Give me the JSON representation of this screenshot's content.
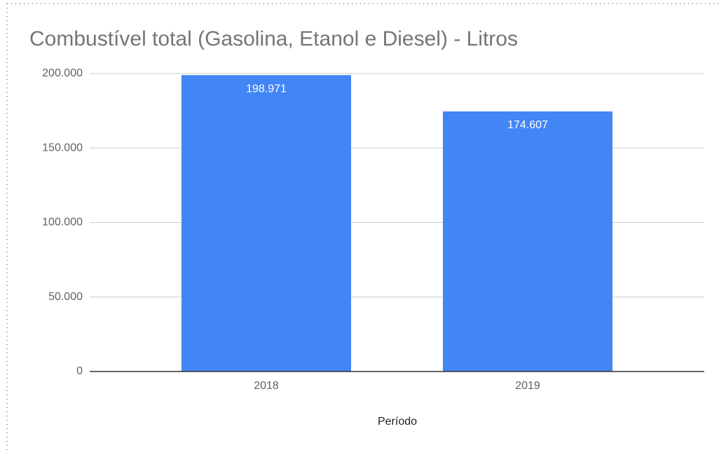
{
  "chart_data": {
    "type": "bar",
    "title": "Combustível total (Gasolina, Etanol e Diesel) - Litros",
    "x_label": "Período",
    "categories": [
      "2018",
      "2019"
    ],
    "values": [
      198971,
      174607
    ],
    "value_labels": [
      "198.971",
      "174.607"
    ],
    "color": "#4285f4",
    "ylim": [
      0,
      200000
    ],
    "yticks": [
      0,
      {
        "value": 50000,
        "label": "50.000"
      },
      {
        "value": 100000,
        "label": "100.000"
      },
      {
        "value": 150000,
        "label": "150.000"
      },
      {
        "value": 200000,
        "label": "200.000"
      }
    ],
    "grid": true
  }
}
